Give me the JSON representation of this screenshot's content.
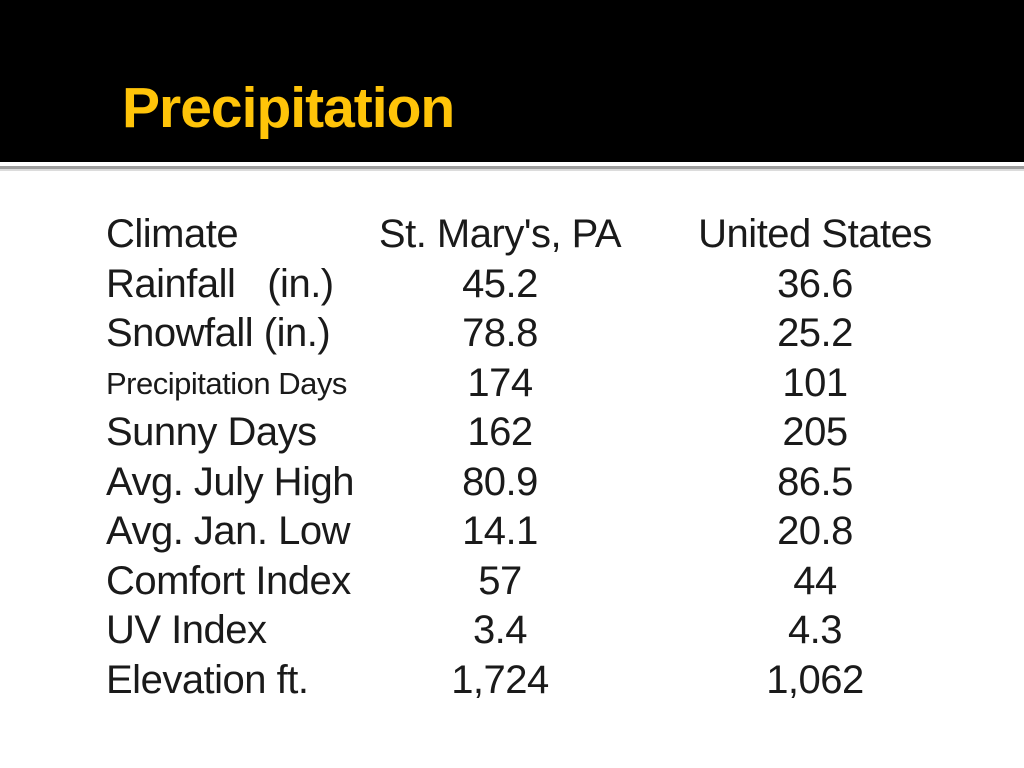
{
  "slide": {
    "title": "Precipitation"
  },
  "colors": {
    "header_bg": "#000000",
    "title_text": "#FFC409",
    "body_text": "#1A1A1A",
    "separator": "#9E9E9E",
    "background": "#FFFFFF"
  },
  "table": {
    "header": {
      "col_label": "Climate",
      "col_st_marys": "St. Mary's, PA",
      "col_us": "United States"
    },
    "rows": [
      {
        "label": "Rainfall   (in.)",
        "st_marys": "45.2",
        "us": "36.6"
      },
      {
        "label": "Snowfall (in.)",
        "st_marys": "78.8",
        "us": "25.2"
      },
      {
        "label": "Precipitation Days",
        "st_marys": "174",
        "us": "101"
      },
      {
        "label": "Sunny Days",
        "st_marys": "162",
        "us": "205"
      },
      {
        "label": "Avg. July High",
        "st_marys": "80.9",
        "us": "86.5"
      },
      {
        "label": "Avg. Jan. Low",
        "st_marys": "14.1",
        "us": "20.8"
      },
      {
        "label": "Comfort Index",
        "st_marys": "57",
        "us": "44"
      },
      {
        "label": "UV Index",
        "st_marys": "3.4",
        "us": "4.3"
      },
      {
        "label": "Elevation ft.",
        "st_marys": "1,724",
        "us": "1,062"
      }
    ]
  }
}
